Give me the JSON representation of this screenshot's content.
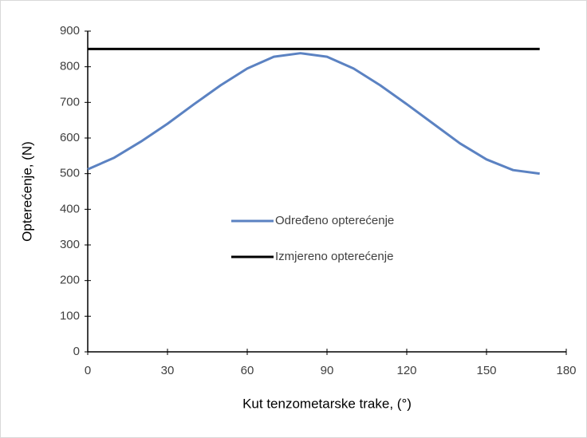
{
  "chart_data": {
    "type": "line",
    "xlabel": "Kut tenzometarske trake, (°)",
    "ylabel": "Opterećenje, (N)",
    "xlim": [
      0,
      180
    ],
    "xticks": [
      0,
      30,
      60,
      90,
      120,
      150,
      180
    ],
    "ylim": [
      0,
      900
    ],
    "yticks": [
      0,
      100,
      200,
      300,
      400,
      500,
      600,
      700,
      800,
      900
    ],
    "grid": false,
    "legend": "center",
    "series": [
      {
        "name": "Određeno opterećenje",
        "color": "#5b82c2",
        "x": [
          0,
          10,
          20,
          30,
          40,
          50,
          60,
          70,
          80,
          90,
          100,
          110,
          120,
          130,
          140,
          150,
          160,
          170
        ],
        "values": [
          512,
          545,
          590,
          640,
          695,
          748,
          795,
          828,
          838,
          828,
          795,
          748,
          695,
          640,
          585,
          540,
          510,
          500
        ]
      },
      {
        "name": "Izmjereno opterećenje",
        "color": "#000000",
        "x": [
          0,
          170
        ],
        "values": [
          850,
          850
        ]
      }
    ]
  }
}
